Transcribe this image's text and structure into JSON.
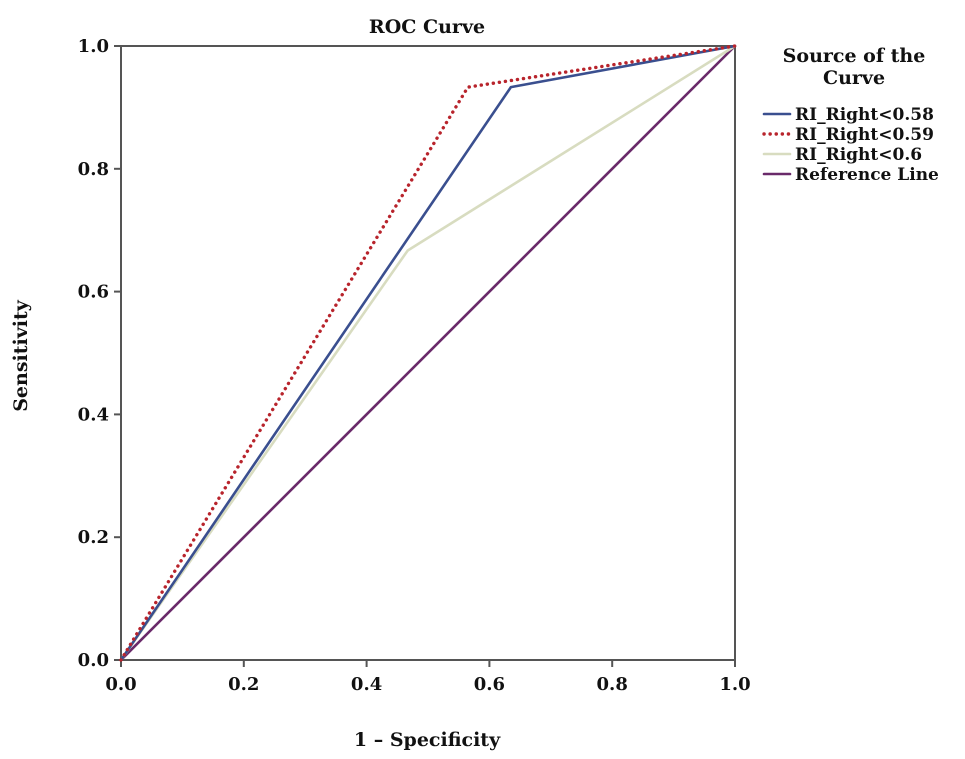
{
  "chart_data": {
    "type": "line",
    "title": "ROC Curve",
    "xlabel": "1 – Specificity",
    "ylabel": "Sensitivity",
    "xlim": [
      0,
      1
    ],
    "ylim": [
      0,
      1
    ],
    "x_ticks": [
      "0.0",
      "0.2",
      "0.4",
      "0.6",
      "0.8",
      "1.0"
    ],
    "y_ticks": [
      "0.0",
      "0.2",
      "0.4",
      "0.6",
      "0.8",
      "1.0"
    ],
    "grid": false,
    "legend": {
      "title_lines": [
        "Source of the",
        "Curve"
      ],
      "placement": "right"
    },
    "series": [
      {
        "name": "RI_Right<0.58",
        "color": "#3a4f8f",
        "style": "solid",
        "x": [
          0.0,
          0.635,
          1.0
        ],
        "y": [
          0.0,
          0.933,
          1.0
        ]
      },
      {
        "name": "RI_Right<0.59",
        "color": "#b8242c",
        "style": "dotted",
        "x": [
          0.0,
          0.565,
          1.0
        ],
        "y": [
          0.0,
          0.933,
          1.0
        ]
      },
      {
        "name": "RI_Right<0.6",
        "color": "#d8dcc0",
        "style": "solid",
        "x": [
          0.0,
          0.467,
          1.0
        ],
        "y": [
          0.0,
          0.667,
          1.0
        ]
      },
      {
        "name": "Reference Line",
        "color": "#6a2a6a",
        "style": "solid",
        "x": [
          0.0,
          1.0
        ],
        "y": [
          0.0,
          1.0
        ]
      }
    ]
  }
}
